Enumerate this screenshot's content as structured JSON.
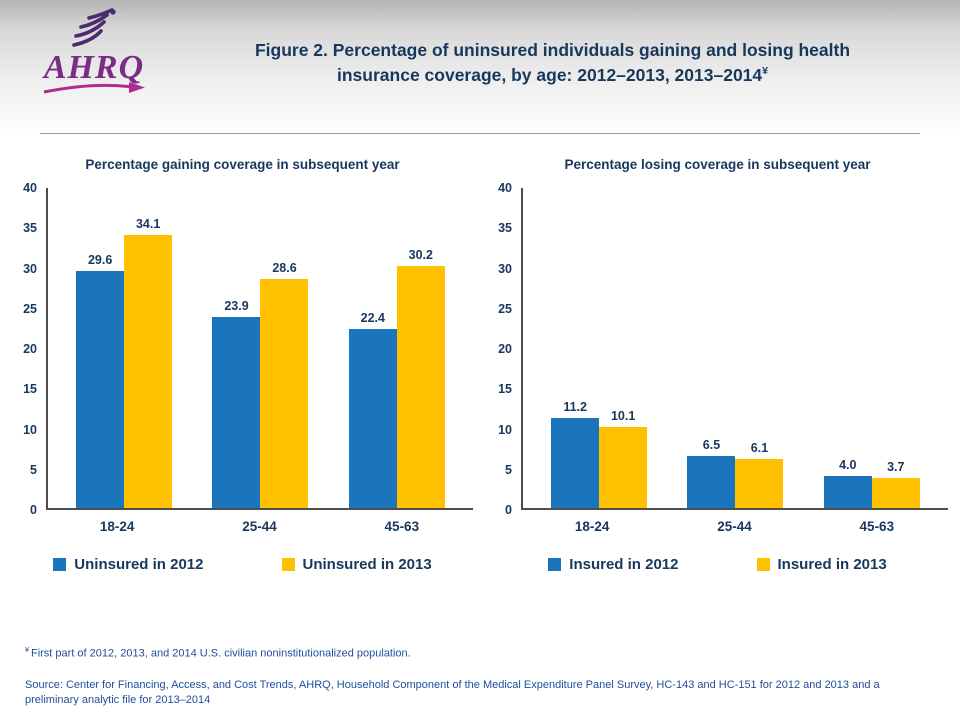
{
  "page": {
    "title_line1": "Figure 2. Percentage of uninsured individuals gaining and losing health",
    "title_line2": "insurance coverage, by age: 2012–2013, 2013–2014",
    "title_sup": "¥"
  },
  "logo": {
    "org": "AHRQ"
  },
  "colors": {
    "series_blue": "#1b75bc",
    "series_gold": "#ffc000",
    "title_navy": "#17375d",
    "footnote_blue": "#1f4e9c",
    "logo_purple": "#7c2c86"
  },
  "chart_data": [
    {
      "type": "bar",
      "title": "Percentage gaining coverage in subsequent year",
      "categories": [
        "18-24",
        "25-44",
        "45-63"
      ],
      "series": [
        {
          "name": "Uninsured in 2012",
          "color": "#1b75bc",
          "values": [
            29.6,
            23.9,
            22.4
          ]
        },
        {
          "name": "Uninsured in 2013",
          "color": "#ffc000",
          "values": [
            34.1,
            28.6,
            30.2
          ]
        }
      ],
      "ylim": [
        0,
        40
      ],
      "ytick_step": 5,
      "grid": false,
      "legend_position": "bottom"
    },
    {
      "type": "bar",
      "title": "Percentage losing coverage in subsequent year",
      "categories": [
        "18-24",
        "25-44",
        "45-63"
      ],
      "series": [
        {
          "name": "Insured in 2012",
          "color": "#1b75bc",
          "values": [
            11.2,
            6.5,
            4.0
          ]
        },
        {
          "name": "Insured in 2013",
          "color": "#ffc000",
          "values": [
            10.1,
            6.1,
            3.7
          ]
        }
      ],
      "ylim": [
        0,
        40
      ],
      "ytick_step": 5,
      "grid": false,
      "legend_position": "bottom"
    }
  ],
  "footnote": {
    "symbol": "¥",
    "text": "First part of 2012, 2013, and 2014 U.S. civilian noninstitutionalized population.",
    "source": "Source: Center for Financing, Access, and Cost Trends, AHRQ, Household Component of the Medical Expenditure Panel Survey, HC-143 and HC-151 for 2012 and 2013 and a preliminary analytic file for 2013–2014"
  }
}
